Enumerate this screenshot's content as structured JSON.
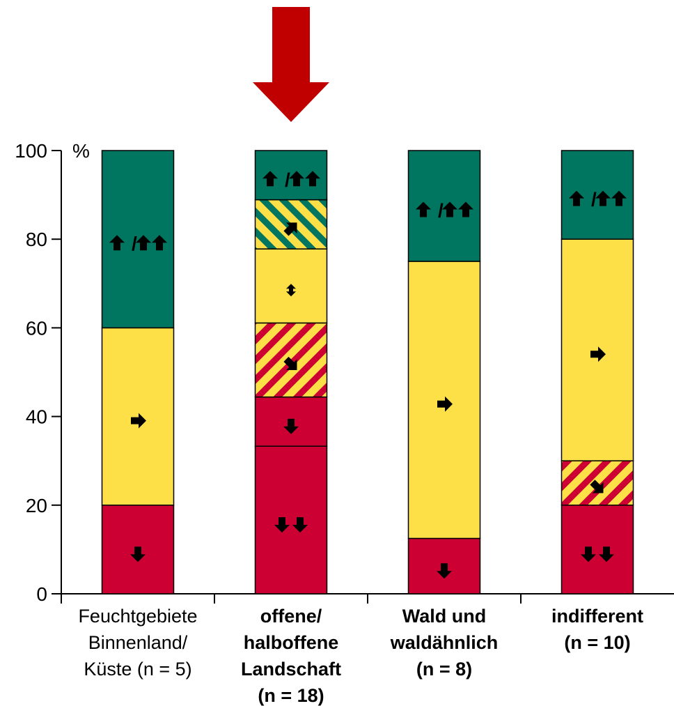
{
  "chart_data": {
    "type": "bar",
    "stacked": true,
    "y_unit_label": "%",
    "ylim": [
      0,
      100
    ],
    "yticks": [
      0,
      20,
      40,
      60,
      80,
      100
    ],
    "grid": false,
    "highlight_arrow": {
      "target_category_index": 1,
      "color": "#c00000"
    },
    "categories": [
      {
        "lines": [
          "Feuchtgebiete",
          "Binnenland/",
          "Küste (n = 5)"
        ],
        "bold": false
      },
      {
        "lines": [
          "offene/",
          "halboffene",
          "Landschaft",
          "(n = 18)"
        ],
        "bold": true
      },
      {
        "lines": [
          "Wald und",
          "waldähnlich",
          "(n = 8)"
        ],
        "bold": true
      },
      {
        "lines": [
          "indifferent",
          "(n = 10)"
        ],
        "bold": true
      }
    ],
    "series": [
      {
        "symbol": "↓↓",
        "fill": "red",
        "values": [
          0,
          33.3,
          0,
          20
        ]
      },
      {
        "symbol": "↓",
        "fill": "red",
        "values": [
          20,
          11.1,
          12.5,
          0
        ]
      },
      {
        "symbol": "↘",
        "fill": "red-yellow-hatched",
        "values": [
          0,
          16.7,
          0,
          10
        ]
      },
      {
        "symbol": "↕",
        "fill": "yellow",
        "values": [
          0,
          16.7,
          0,
          0
        ]
      },
      {
        "symbol": "→",
        "fill": "yellow",
        "values": [
          40,
          0,
          62.5,
          50
        ]
      },
      {
        "symbol": "↗",
        "fill": "green-yellow-hatched",
        "values": [
          0,
          11.1,
          0,
          0
        ]
      },
      {
        "symbol": "↑/↑↑",
        "fill": "green",
        "values": [
          40,
          11.1,
          25,
          20
        ]
      }
    ],
    "colors": {
      "red": "#cc0033",
      "yellow": "#fde047",
      "green": "#007560"
    }
  }
}
